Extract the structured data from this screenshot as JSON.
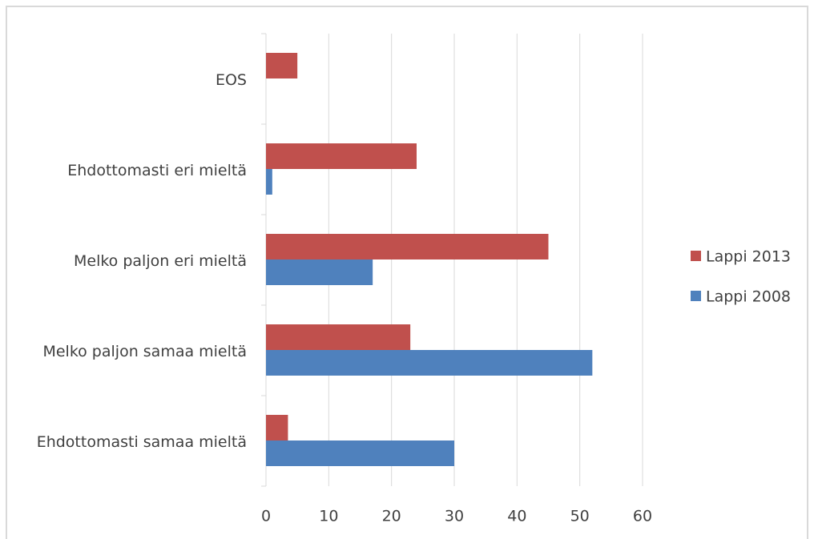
{
  "chart_data": {
    "type": "hbar",
    "categories": [
      "EOS",
      "Ehdottomasti eri mieltä",
      "Melko paljon eri mieltä",
      "Melko paljon samaa mieltä",
      "Ehdottomasti samaa mieltä"
    ],
    "series": [
      {
        "name": "Lappi 2013",
        "color": "#c0504d",
        "values": [
          5,
          24,
          45,
          23,
          3.5
        ]
      },
      {
        "name": "Lappi 2008",
        "color": "#4f81bd",
        "values": [
          null,
          1,
          17,
          52,
          30
        ]
      }
    ],
    "xlim": [
      0,
      60
    ],
    "xticks": [
      0,
      10,
      20,
      30,
      40,
      50,
      60
    ],
    "grid": true,
    "legend": "right"
  }
}
